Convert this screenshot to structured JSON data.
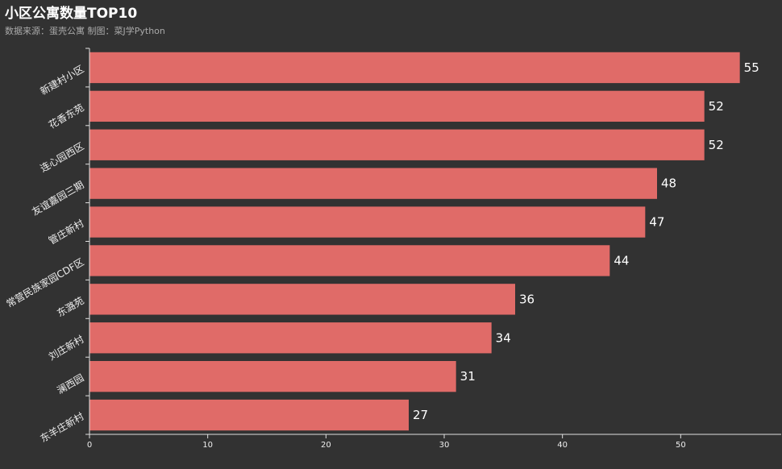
{
  "title": "小区公寓数量TOP10",
  "subtitle": "数据来源：蛋壳公寓  制图：菜J学Python",
  "colors": {
    "background": "#323232",
    "bar": "#e06b68",
    "axis": "#e0e0e0",
    "text": "#eeeeee"
  },
  "chart_data": {
    "type": "bar",
    "orientation": "horizontal",
    "title": "小区公寓数量TOP10",
    "subtitle": "数据来源：蛋壳公寓  制图：菜J学Python",
    "categories": [
      "新建村小区",
      "花香东苑",
      "连心园西区",
      "友谊嘉园三期",
      "管庄新村",
      "常营民族家园CDF区",
      "东潞苑",
      "刘庄新村",
      "澜西园",
      "东羊庄新村"
    ],
    "values": [
      55,
      52,
      52,
      48,
      47,
      44,
      36,
      34,
      31,
      27
    ],
    "xticks": [
      0,
      10,
      20,
      30,
      40,
      50
    ],
    "xlim": [
      0,
      58.5
    ],
    "grid": false,
    "data_labels": true
  }
}
